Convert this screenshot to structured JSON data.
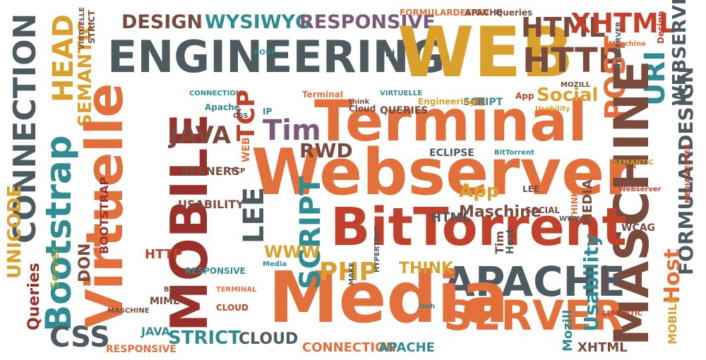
{
  "palette": {
    "gray": "#4d5b61",
    "teal": "#2f8c93",
    "orange": "#e3703a",
    "red": "#c2412b",
    "brown": "#7a4a3c",
    "gold": "#d9a12b",
    "olive": "#8ea23f",
    "purple": "#7a5a78",
    "maroon": "#9b2f2a",
    "light": "#c9a64a"
  },
  "words": [
    {
      "t": "CONNECTION",
      "c": "gray"
    },
    {
      "t": "Bootstrap",
      "c": "teal"
    },
    {
      "t": "HEAD",
      "c": "gold"
    },
    {
      "t": "SEMANTIC",
      "c": "gold"
    },
    {
      "t": "VIRTUELLE",
      "c": "brown"
    },
    {
      "t": "STRICT",
      "c": "brown"
    },
    {
      "t": "UNICODE",
      "c": "gold"
    },
    {
      "t": "Queries",
      "c": "maroon"
    },
    {
      "t": "CSS",
      "c": "gray"
    },
    {
      "t": "DESIGN",
      "c": "brown"
    },
    {
      "t": "WYSIWYG",
      "c": "teal"
    },
    {
      "t": "RESPONSIVE",
      "c": "purple"
    },
    {
      "t": "FORMULARDESIGN",
      "c": "orange"
    },
    {
      "t": "APACHE",
      "c": "brown"
    },
    {
      "t": "Queries",
      "c": "brown"
    },
    {
      "t": "ENGINEERING",
      "c": "gray"
    },
    {
      "t": "WEB",
      "c": "gold"
    },
    {
      "t": "HTML",
      "c": "brown"
    },
    {
      "t": "XHTML",
      "c": "red"
    },
    {
      "t": "HTTP",
      "c": "brown"
    },
    {
      "t": "CONNECTION",
      "c": "teal"
    },
    {
      "t": "WEBSERVER",
      "c": "gray"
    },
    {
      "t": "URI",
      "c": "teal"
    },
    {
      "t": "POST",
      "c": "orange"
    },
    {
      "t": "Design",
      "c": "red"
    },
    {
      "t": "Virtuelle",
      "c": "orange"
    },
    {
      "t": "MOBILE",
      "c": "maroon"
    },
    {
      "t": "TCP",
      "c": "red"
    },
    {
      "t": "Tim",
      "c": "purple"
    },
    {
      "t": "JAVA",
      "c": "brown"
    },
    {
      "t": "Terminal",
      "c": "orange"
    },
    {
      "t": "Social",
      "c": "gold"
    },
    {
      "t": "Webserver",
      "c": "orange"
    },
    {
      "t": "MASCHINE",
      "c": "brown"
    },
    {
      "t": "FORMULARDESIGN",
      "c": "gray"
    },
    {
      "t": "Host",
      "c": "orange"
    },
    {
      "t": "BitTorrent",
      "c": "red"
    },
    {
      "t": "APACHE",
      "c": "gray"
    },
    {
      "t": "SERVER",
      "c": "orange"
    },
    {
      "t": "Media",
      "c": "orange"
    },
    {
      "t": "LEE",
      "c": "gray"
    },
    {
      "t": "SCRIPT",
      "c": "teal"
    },
    {
      "t": "PHP",
      "c": "gold"
    },
    {
      "t": "THINK",
      "c": "gold"
    },
    {
      "t": "RWD",
      "c": "brown"
    },
    {
      "t": "BERNERS",
      "c": "brown"
    },
    {
      "t": "USABILITY",
      "c": "brown"
    },
    {
      "t": "App",
      "c": "gold"
    },
    {
      "t": "Maschine",
      "c": "brown"
    },
    {
      "t": "Usability",
      "c": "teal"
    },
    {
      "t": "MOBILE",
      "c": "gold"
    },
    {
      "t": "Mozill",
      "c": "teal"
    },
    {
      "t": "XHTML",
      "c": "brown"
    },
    {
      "t": "HTTP",
      "c": "red"
    },
    {
      "t": "DON",
      "c": "brown"
    },
    {
      "t": "BOOTSTRAP",
      "c": "maroon"
    },
    {
      "t": "Server",
      "c": "olive"
    },
    {
      "t": "MIME",
      "c": "brown"
    },
    {
      "t": "JAVA",
      "c": "teal"
    },
    {
      "t": "STRICT",
      "c": "teal"
    },
    {
      "t": "CLOUD",
      "c": "gray"
    },
    {
      "t": "RESPONSIVE",
      "c": "orange"
    },
    {
      "t": "CONNECTION",
      "c": "orange"
    },
    {
      "t": "APACHE",
      "c": "teal"
    },
    {
      "t": "WWW",
      "c": "gold"
    },
    {
      "t": "HTML",
      "c": "gray"
    },
    {
      "t": "SOCIAL",
      "c": "brown"
    },
    {
      "t": "LEE",
      "c": "brown"
    },
    {
      "t": "MEDIA",
      "c": "brown"
    },
    {
      "t": "WCAG",
      "c": "brown"
    },
    {
      "t": "SEMANTIC",
      "c": "gold"
    },
    {
      "t": "Webserver",
      "c": "red"
    },
    {
      "t": "QUERIES",
      "c": "brown"
    },
    {
      "t": "SCRIPT",
      "c": "teal"
    },
    {
      "t": "Engineering",
      "c": "gold"
    },
    {
      "t": "ECLIPSE",
      "c": "gray"
    },
    {
      "t": "BitTorrent",
      "c": "teal"
    },
    {
      "t": "HYPERTEXT",
      "c": "gray"
    },
    {
      "t": "CLOUD",
      "c": "red"
    },
    {
      "t": "POST",
      "c": "teal"
    },
    {
      "t": "URI",
      "c": "gray"
    },
    {
      "t": "Cloud",
      "c": "brown"
    },
    {
      "t": "think",
      "c": "brown"
    },
    {
      "t": "IP",
      "c": "teal"
    },
    {
      "t": "Apache",
      "c": "teal"
    },
    {
      "t": "CSS",
      "c": "gray"
    },
    {
      "t": "WEB",
      "c": "orange"
    },
    {
      "t": "TCP",
      "c": "brown"
    },
    {
      "t": "RESPONSIVE",
      "c": "teal"
    },
    {
      "t": "Berners",
      "c": "brown"
    },
    {
      "t": "TERMINAL",
      "c": "orange"
    },
    {
      "t": "MAKE",
      "c": "gray"
    },
    {
      "t": "Doh",
      "c": "teal"
    },
    {
      "t": "Media",
      "c": "teal"
    },
    {
      "t": "Design",
      "c": "brown"
    },
    {
      "t": "MASCHINE",
      "c": "brown"
    },
    {
      "t": "SEMANTIC",
      "c": "red"
    },
    {
      "t": "MEDIA SERVER",
      "c": "red"
    },
    {
      "t": "Maschine",
      "c": "orange"
    },
    {
      "t": "WEBSERVER",
      "c": "gray"
    },
    {
      "t": "Tim",
      "c": "brown"
    },
    {
      "t": "Host",
      "c": "gray"
    },
    {
      "t": "App",
      "c": "red"
    },
    {
      "t": "Usability",
      "c": "gold"
    },
    {
      "t": "THINK",
      "c": "orange"
    },
    {
      "t": "WWW",
      "c": "gray"
    },
    {
      "t": "MOZILL",
      "c": "brown"
    },
    {
      "t": "VIRTUELLE",
      "c": "teal"
    },
    {
      "t": "Terminal",
      "c": "orange"
    }
  ]
}
